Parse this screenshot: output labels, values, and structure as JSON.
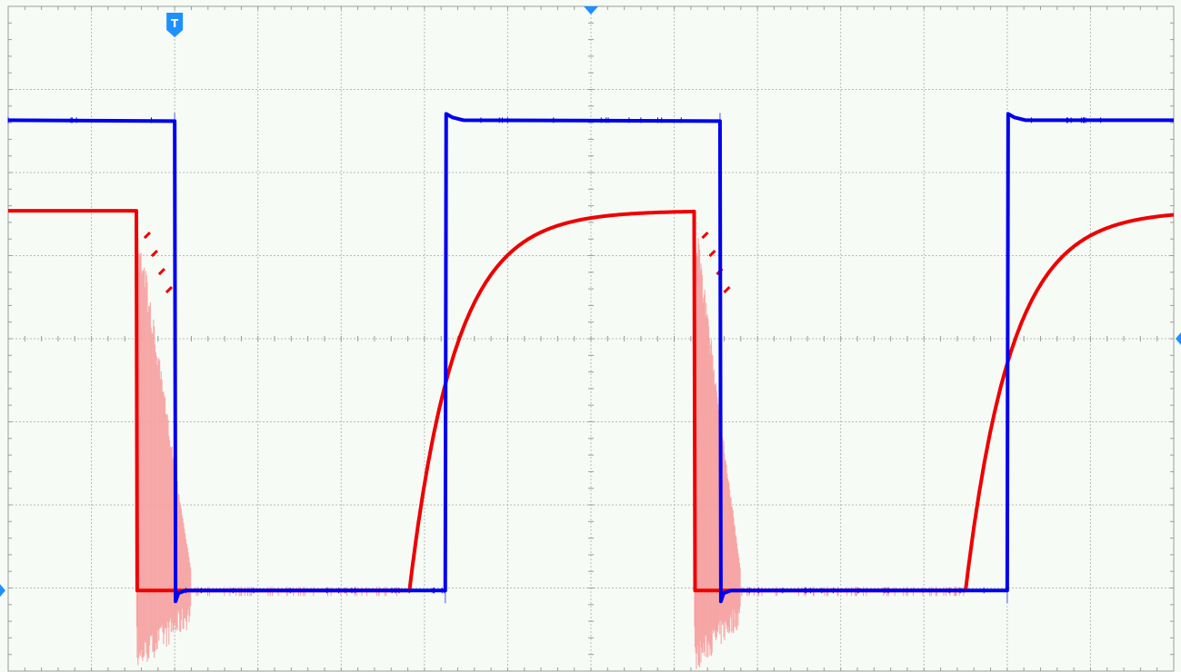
{
  "chart_data": {
    "type": "line",
    "title": "",
    "xlabel": "",
    "ylabel": "",
    "grid": true,
    "xlim": [
      0,
      14
    ],
    "ylim": [
      0,
      8
    ],
    "divisions": {
      "x": 14,
      "y": 8
    },
    "trigger_marker": "T",
    "colors": {
      "background": "#f6fbf6",
      "grid": "#b8bcb8",
      "frame": "#9a9e9a",
      "channel_1": "#0000ee",
      "channel_1_envelope": "#8f92f0",
      "channel_2": "#ee0000",
      "channel_2_envelope": "#f7a0a0",
      "markers": "#1e90ff"
    },
    "series": [
      {
        "id": "channel_1",
        "shape": "square",
        "level_high": 6.63,
        "level_low": 0.97,
        "edges": [
          {
            "t": 2.0,
            "dir": "fall"
          },
          {
            "t": 5.25,
            "dir": "rise"
          },
          {
            "t": 8.55,
            "dir": "fall"
          },
          {
            "t": 12.0,
            "dir": "rise"
          }
        ]
      },
      {
        "id": "channel_2",
        "shape": "rc-response",
        "level_high": 5.54,
        "level_low": 0.97,
        "edges": [
          {
            "t": 1.55,
            "dir": "fall",
            "ringing_until": 2.2
          },
          {
            "t": 4.82,
            "dir": "rise"
          },
          {
            "t": 8.25,
            "dir": "fall",
            "ringing_until": 8.8
          },
          {
            "t": 11.5,
            "dir": "rise"
          }
        ]
      }
    ]
  }
}
